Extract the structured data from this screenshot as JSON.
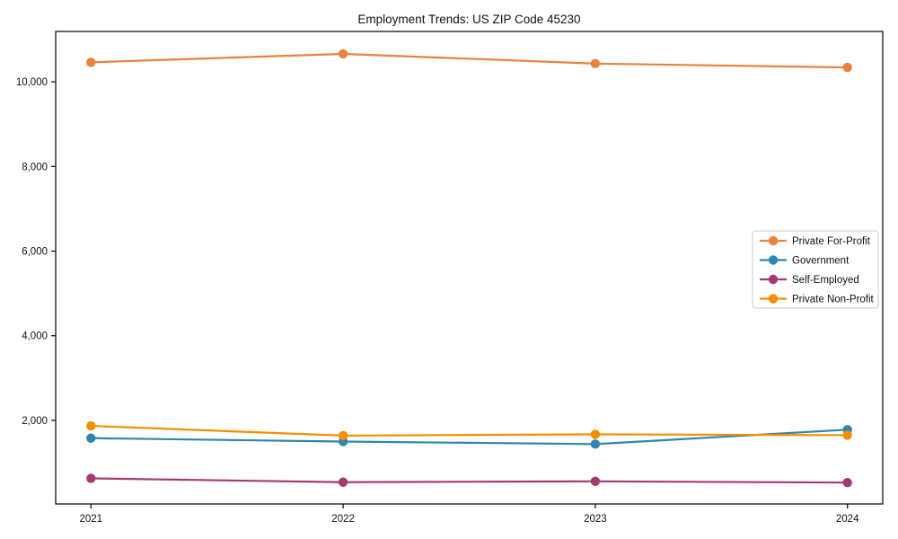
{
  "chart_data": {
    "type": "line",
    "title": "Employment Trends: US ZIP Code 45230",
    "xlabel": "",
    "ylabel": "",
    "x": [
      2021,
      2022,
      2023,
      2024
    ],
    "x_tick_labels": [
      "2021",
      "2022",
      "2023",
      "2024"
    ],
    "y_ticks": [
      2000,
      4000,
      6000,
      8000,
      10000
    ],
    "y_tick_labels": [
      "2,000",
      "4,000",
      "6,000",
      "8,000",
      "10,000"
    ],
    "xlim": [
      2020.86,
      2024.14
    ],
    "ylim": [
      25,
      11190
    ],
    "grid": false,
    "legend_position": "center-right",
    "series": [
      {
        "name": "Private For-Profit",
        "color": "#E8823C",
        "values": [
          10460,
          10660,
          10430,
          10340
        ]
      },
      {
        "name": "Government",
        "color": "#2E86AB",
        "values": [
          1580,
          1500,
          1440,
          1780
        ]
      },
      {
        "name": "Self-Employed",
        "color": "#A23B72",
        "values": [
          630,
          540,
          560,
          530
        ]
      },
      {
        "name": "Private Non-Profit",
        "color": "#F18F01",
        "values": [
          1870,
          1640,
          1670,
          1650
        ]
      }
    ]
  },
  "colors": {
    "spine": "#000000",
    "legend_border": "#cccccc",
    "background": "#ffffff"
  }
}
